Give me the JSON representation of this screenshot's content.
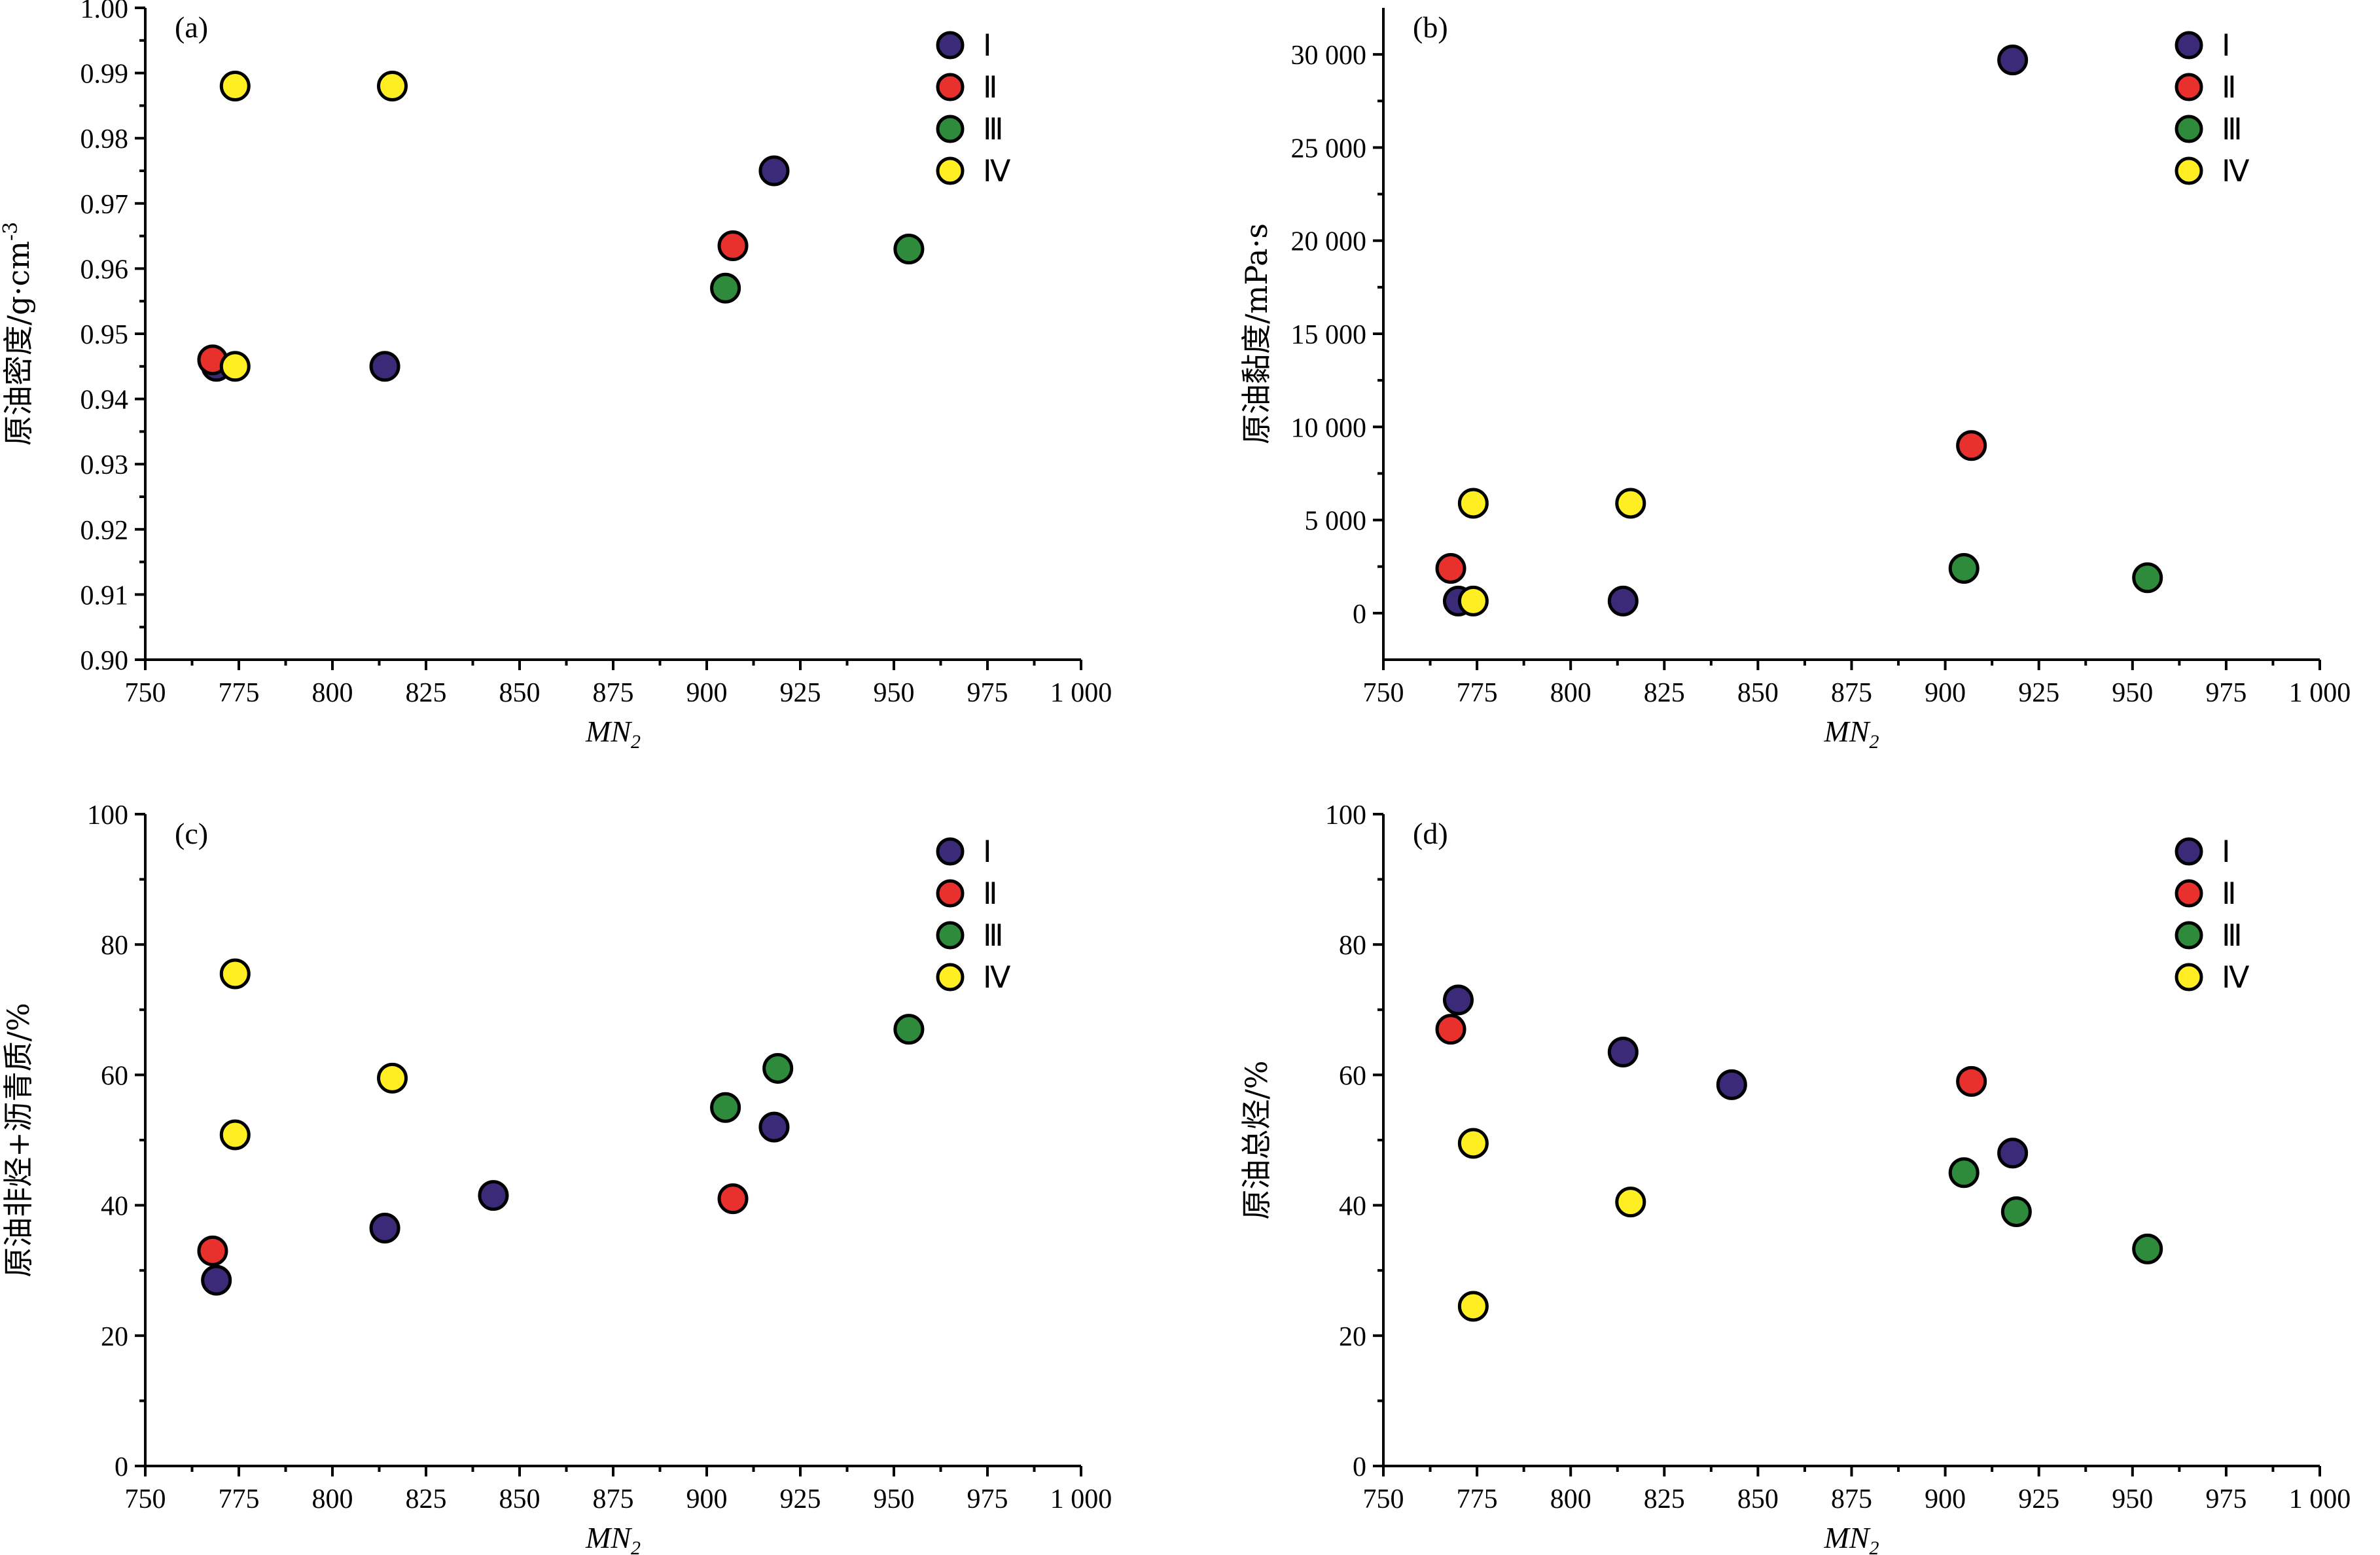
{
  "groups": [
    {
      "id": "I",
      "label": "Ⅰ",
      "color": "#3b2a78"
    },
    {
      "id": "II",
      "label": "Ⅱ",
      "color": "#e8312c"
    },
    {
      "id": "III",
      "label": "Ⅲ",
      "color": "#2e8b3c"
    },
    {
      "id": "IV",
      "label": "Ⅳ",
      "color": "#ffee22"
    }
  ],
  "chart_data": [
    {
      "panel": "(a)",
      "type": "scatter",
      "xlabel": "MN",
      "xlabel_sub": "2",
      "ylabel": "原油密度/g·cm",
      "ylabel_sup": "-3",
      "xlim": [
        750,
        1000
      ],
      "ylim": [
        0.9,
        1.0
      ],
      "xticks": [
        750,
        775,
        800,
        825,
        850,
        875,
        900,
        925,
        950,
        975,
        1000
      ],
      "xtick_labels": [
        "750",
        "775",
        "800",
        "825",
        "850",
        "875",
        "900",
        "925",
        "950",
        "975",
        "1 000"
      ],
      "yticks": [
        0.9,
        0.91,
        0.92,
        0.93,
        0.94,
        0.95,
        0.96,
        0.97,
        0.98,
        0.99,
        1.0
      ],
      "ytick_labels": [
        "0.90",
        "0.91",
        "0.92",
        "0.93",
        "0.94",
        "0.95",
        "0.96",
        "0.97",
        "0.98",
        "0.99",
        "1.00"
      ],
      "legend": "top-right",
      "series": [
        {
          "name": "Ⅰ",
          "points": [
            [
              769,
              0.945
            ],
            [
              814,
              0.945
            ],
            [
              918,
              0.975
            ]
          ]
        },
        {
          "name": "Ⅱ",
          "points": [
            [
              768,
              0.946
            ],
            [
              907,
              0.9635
            ]
          ]
        },
        {
          "name": "Ⅲ",
          "points": [
            [
              905,
              0.957
            ],
            [
              954,
              0.963
            ]
          ]
        },
        {
          "name": "Ⅳ",
          "points": [
            [
              774,
              0.988
            ],
            [
              816,
              0.988
            ],
            [
              774,
              0.945
            ]
          ]
        }
      ]
    },
    {
      "panel": "(b)",
      "type": "scatter",
      "xlabel": "MN",
      "xlabel_sub": "2",
      "ylabel": "原油黏度/mPa·s",
      "ylabel_sup": "",
      "xlim": [
        750,
        1000
      ],
      "ylim": [
        -2500,
        32500
      ],
      "xticks": [
        750,
        775,
        800,
        825,
        850,
        875,
        900,
        925,
        950,
        975,
        1000
      ],
      "xtick_labels": [
        "750",
        "775",
        "800",
        "825",
        "850",
        "875",
        "900",
        "925",
        "950",
        "975",
        "1 000"
      ],
      "yticks": [
        0,
        5000,
        10000,
        15000,
        20000,
        25000,
        30000
      ],
      "ytick_labels": [
        "0",
        "5 000",
        "10 000",
        "15 000",
        "20 000",
        "25 000",
        "30 000"
      ],
      "legend": "top-right",
      "series": [
        {
          "name": "Ⅰ",
          "points": [
            [
              770,
              650
            ],
            [
              814,
              650
            ],
            [
              918,
              29700
            ]
          ]
        },
        {
          "name": "Ⅱ",
          "points": [
            [
              768,
              2400
            ],
            [
              907,
              9000
            ]
          ]
        },
        {
          "name": "Ⅲ",
          "points": [
            [
              905,
              2400
            ],
            [
              954,
              1900
            ]
          ]
        },
        {
          "name": "Ⅳ",
          "points": [
            [
              774,
              5900
            ],
            [
              816,
              5900
            ],
            [
              774,
              650
            ]
          ]
        }
      ]
    },
    {
      "panel": "(c)",
      "type": "scatter",
      "xlabel": "MN",
      "xlabel_sub": "2",
      "ylabel": "原油非烃+沥青质/%",
      "ylabel_sup": "",
      "xlim": [
        750,
        1000
      ],
      "ylim": [
        0,
        100
      ],
      "xticks": [
        750,
        775,
        800,
        825,
        850,
        875,
        900,
        925,
        950,
        975,
        1000
      ],
      "xtick_labels": [
        "750",
        "775",
        "800",
        "825",
        "850",
        "875",
        "900",
        "925",
        "950",
        "975",
        "1 000"
      ],
      "yticks": [
        0,
        20,
        40,
        60,
        80,
        100
      ],
      "ytick_labels": [
        "0",
        "20",
        "40",
        "60",
        "80",
        "100"
      ],
      "legend": "top-right",
      "series": [
        {
          "name": "Ⅰ",
          "points": [
            [
              769,
              28.5
            ],
            [
              814,
              36.5
            ],
            [
              843,
              41.5
            ],
            [
              918,
              52
            ]
          ]
        },
        {
          "name": "Ⅱ",
          "points": [
            [
              768,
              33
            ],
            [
              907,
              41
            ]
          ]
        },
        {
          "name": "Ⅲ",
          "points": [
            [
              905,
              55
            ],
            [
              919,
              61
            ],
            [
              954,
              67
            ]
          ]
        },
        {
          "name": "Ⅳ",
          "points": [
            [
              774,
              75.5
            ],
            [
              816,
              59.5
            ],
            [
              774,
              50.8
            ]
          ]
        }
      ]
    },
    {
      "panel": "(d)",
      "type": "scatter",
      "xlabel": "MN",
      "xlabel_sub": "2",
      "ylabel": "原油总烃/%",
      "ylabel_sup": "",
      "xlim": [
        750,
        1000
      ],
      "ylim": [
        0,
        100
      ],
      "xticks": [
        750,
        775,
        800,
        825,
        850,
        875,
        900,
        925,
        950,
        975,
        1000
      ],
      "xtick_labels": [
        "750",
        "775",
        "800",
        "825",
        "850",
        "875",
        "900",
        "925",
        "950",
        "975",
        "1 000"
      ],
      "yticks": [
        0,
        20,
        40,
        60,
        80,
        100
      ],
      "ytick_labels": [
        "0",
        "20",
        "40",
        "60",
        "80",
        "100"
      ],
      "legend": "top-right",
      "series": [
        {
          "name": "Ⅰ",
          "points": [
            [
              770,
              71.5
            ],
            [
              814,
              63.5
            ],
            [
              843,
              58.5
            ],
            [
              918,
              48
            ]
          ]
        },
        {
          "name": "Ⅱ",
          "points": [
            [
              768,
              67
            ],
            [
              907,
              59
            ]
          ]
        },
        {
          "name": "Ⅲ",
          "points": [
            [
              905,
              45
            ],
            [
              919,
              39
            ],
            [
              954,
              33.3
            ]
          ]
        },
        {
          "name": "Ⅳ",
          "points": [
            [
              774,
              49.5
            ],
            [
              816,
              40.5
            ],
            [
              774,
              24.5
            ]
          ]
        }
      ]
    }
  ]
}
